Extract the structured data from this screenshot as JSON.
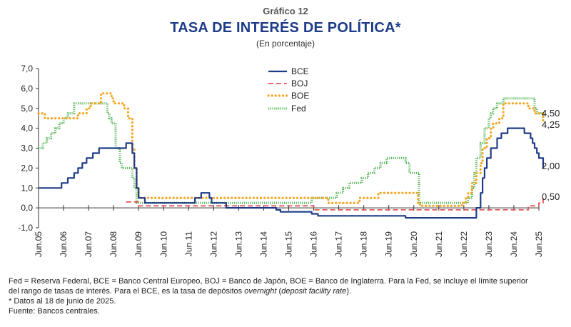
{
  "header": {
    "kicker": "Gráfico 12",
    "title": "TASA DE INTERÉS DE POLÍTICA*",
    "subtitle": "(En porcentaje)"
  },
  "notes": {
    "line1": "Fed = Reserva Federal, BCE = Banco Central Europeo, BOJ = Banco de Japón, BOE = Banco de Inglaterra. Para la Fed, se incluye el límite superior",
    "line2_pre": "del rango de tasas de interés. Para el BCE, es la tasa de depósitos ",
    "line2_em1": "overnight",
    "line2_mid": " (",
    "line2_em2": "deposit facility rate",
    "line2_post": ").",
    "line3": "* Datos al 18 de junio de 2025.",
    "line4": "Fuente: Bancos centrales."
  },
  "chart_data": {
    "type": "line",
    "x_ticks": [
      "Jun.05",
      "Jun.06",
      "Jun.07",
      "Jun.08",
      "Jun.09",
      "Jun.10",
      "Jun.11",
      "Jun.12",
      "Jun.13",
      "Jun.14",
      "Jun.15",
      "Jun.16",
      "Jun.17",
      "Jun.18",
      "Jun.19",
      "Jun.20",
      "Jun.21",
      "Jun.22",
      "Jun.23",
      "Jun.24",
      "Jun.25"
    ],
    "x_range": [
      2005.0,
      2025.0
    ],
    "y_ticks": [
      "-1,0",
      "0,0",
      "1,0",
      "2,0",
      "3,0",
      "4,0",
      "5,0",
      "6,0",
      "7,0"
    ],
    "ylim": [
      -1,
      7
    ],
    "grid": false,
    "legend_position": "top-center",
    "end_labels": [
      {
        "text": "4,50",
        "value": 4.5
      },
      {
        "text": "4,25",
        "value": 4.25
      },
      {
        "text": "2,00",
        "value": 2.0
      },
      {
        "text": "0,50",
        "value": 0.5
      }
    ],
    "series": [
      {
        "name": "BCE",
        "color": "#1f3c88",
        "style": "solid",
        "x": [
          2005.0,
          2005.92,
          2006.17,
          2006.42,
          2006.58,
          2006.75,
          2006.92,
          2007.17,
          2007.42,
          2008.5,
          2008.75,
          2008.83,
          2008.92,
          2009.0,
          2009.25,
          2011.25,
          2011.5,
          2011.83,
          2011.92,
          2012.5,
          2014.5,
          2014.67,
          2015.92,
          2016.17,
          2019.67,
          2022.5,
          2022.67,
          2022.75,
          2022.83,
          2022.92,
          2023.08,
          2023.33,
          2023.5,
          2023.75,
          2024.42,
          2024.67,
          2024.75,
          2024.83,
          2024.92,
          2025.0,
          2025.17
        ],
        "y": [
          1.0,
          1.25,
          1.5,
          1.75,
          2.0,
          2.25,
          2.5,
          2.75,
          3.0,
          3.25,
          2.75,
          2.0,
          1.0,
          0.5,
          0.25,
          0.5,
          0.75,
          0.5,
          0.25,
          0.0,
          -0.1,
          -0.2,
          -0.3,
          -0.4,
          -0.5,
          0.0,
          0.75,
          1.5,
          2.0,
          2.5,
          3.0,
          3.5,
          3.75,
          4.0,
          3.75,
          3.5,
          3.25,
          3.0,
          2.75,
          2.5,
          2.0
        ]
      },
      {
        "name": "BOJ",
        "color": "#e15759",
        "style": "dashed",
        "x": [
          2005.0,
          2008.92,
          2009.0,
          2010.83,
          2016.0,
          2024.17,
          2024.58,
          2025.0,
          2025.17
        ],
        "y": [
          0.0,
          0.3,
          0.1,
          0.1,
          -0.1,
          -0.1,
          0.1,
          0.25,
          0.5
        ],
        "note": "BOJ line rendered only from 2008.5 onward in the original"
      },
      {
        "name": "BOE",
        "color": "#f5a623",
        "style": "dotted",
        "x": [
          2005.0,
          2005.25,
          2005.58,
          2006.58,
          2006.92,
          2007.08,
          2007.5,
          2007.92,
          2008.0,
          2008.42,
          2008.58,
          2008.75,
          2008.83,
          2008.92,
          2009.0,
          2016.58,
          2017.83,
          2018.58,
          2020.17,
          2020.25,
          2021.92,
          2022.08,
          2022.17,
          2022.33,
          2022.5,
          2022.67,
          2022.75,
          2022.92,
          2023.08,
          2023.17,
          2023.42,
          2023.58,
          2024.58,
          2024.83,
          2025.17
        ],
        "y": [
          4.75,
          4.5,
          4.5,
          4.75,
          5.0,
          5.25,
          5.75,
          5.5,
          5.25,
          5.0,
          4.5,
          3.0,
          2.0,
          1.0,
          0.5,
          0.25,
          0.5,
          0.75,
          0.25,
          0.1,
          0.25,
          0.5,
          0.75,
          1.25,
          1.75,
          2.25,
          3.0,
          3.5,
          4.0,
          4.25,
          4.5,
          5.25,
          5.0,
          4.75,
          4.25
        ]
      },
      {
        "name": "Fed",
        "color": "#5cb85c",
        "style": "dotted",
        "x": [
          2005.0,
          2005.17,
          2005.33,
          2005.5,
          2005.67,
          2005.83,
          2006.0,
          2006.17,
          2006.42,
          2007.67,
          2007.75,
          2007.83,
          2007.92,
          2008.08,
          2008.25,
          2008.33,
          2008.75,
          2008.83,
          2008.92,
          2008.96,
          2015.92,
          2016.92,
          2017.17,
          2017.42,
          2017.92,
          2018.17,
          2018.42,
          2018.67,
          2018.92,
          2019.5,
          2019.67,
          2019.83,
          2020.17,
          2020.21,
          2022.17,
          2022.33,
          2022.42,
          2022.5,
          2022.67,
          2022.83,
          2023.0,
          2023.08,
          2023.17,
          2023.33,
          2023.58,
          2024.67,
          2024.83,
          2024.92,
          2025.17
        ],
        "y": [
          3.0,
          3.25,
          3.5,
          3.75,
          4.0,
          4.25,
          4.5,
          4.75,
          5.25,
          5.25,
          4.75,
          4.5,
          4.25,
          3.0,
          2.25,
          2.0,
          1.5,
          1.0,
          0.25,
          0.25,
          0.5,
          0.75,
          1.0,
          1.25,
          1.5,
          1.75,
          2.0,
          2.25,
          2.5,
          2.5,
          2.25,
          1.75,
          1.75,
          0.25,
          0.5,
          1.0,
          1.75,
          2.5,
          3.25,
          4.0,
          4.5,
          4.75,
          5.0,
          5.25,
          5.5,
          5.5,
          5.0,
          4.75,
          4.5
        ]
      }
    ]
  }
}
